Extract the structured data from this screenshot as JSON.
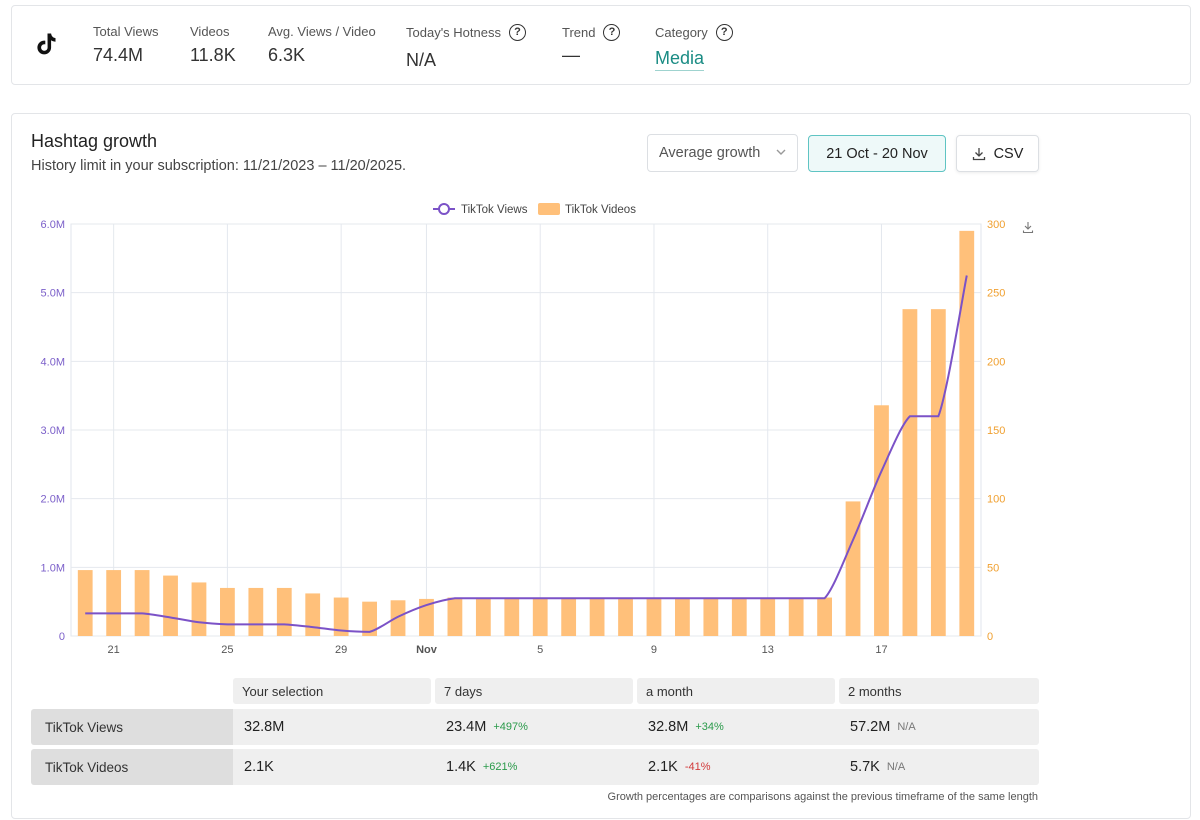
{
  "stats": {
    "total_views_label": "Total Views",
    "total_views_value": "74.4M",
    "videos_label": "Videos",
    "videos_value": "11.8K",
    "avg_label": "Avg. Views / Video",
    "avg_value": "6.3K",
    "hotness_label": "Today's Hotness",
    "hotness_value": "N/A",
    "trend_label": "Trend",
    "trend_value": "—",
    "category_label": "Category",
    "category_value": "Media",
    "help_glyph": "?"
  },
  "growth": {
    "title": "Hashtag growth",
    "subtitle": "History limit in your subscription: 11/21/2023 – 11/20/2025.",
    "mode_select": "Average growth",
    "date_range": "21 Oct - 20 Nov",
    "csv_label": "CSV"
  },
  "colors": {
    "views_line": "#7b52c7",
    "videos_bar": "#ffc07a",
    "right_axis": "#f0a030",
    "left_axis": "#7b5fc9",
    "accent": "#1a8c84"
  },
  "chart_data": {
    "type": "bar+line",
    "legend": [
      "TikTok Views",
      "TikTok Videos"
    ],
    "legend_position": "top-center",
    "x": [
      "Oct 20",
      "Oct 21",
      "Oct 22",
      "Oct 23",
      "Oct 24",
      "Oct 25",
      "Oct 26",
      "Oct 27",
      "Oct 28",
      "Oct 29",
      "Oct 30",
      "Oct 31",
      "Nov 1",
      "Nov 2",
      "Nov 3",
      "Nov 4",
      "Nov 5",
      "Nov 6",
      "Nov 7",
      "Nov 8",
      "Nov 9",
      "Nov 10",
      "Nov 11",
      "Nov 12",
      "Nov 13",
      "Nov 14",
      "Nov 15",
      "Nov 16",
      "Nov 17",
      "Nov 18",
      "Nov 19",
      "Nov 20"
    ],
    "x_ticks": [
      {
        "label": "21",
        "index": 1
      },
      {
        "label": "25",
        "index": 5
      },
      {
        "label": "29",
        "index": 9
      },
      {
        "label": "Nov",
        "index": 12
      },
      {
        "label": "5",
        "index": 16
      },
      {
        "label": "9",
        "index": 20
      },
      {
        "label": "13",
        "index": 24
      },
      {
        "label": "17",
        "index": 28
      }
    ],
    "series": [
      {
        "name": "TikTok Videos",
        "kind": "bar",
        "axis": "right",
        "values": [
          48,
          48,
          48,
          44,
          39,
          35,
          35,
          35,
          31,
          28,
          25,
          26,
          27,
          28,
          28,
          28,
          28,
          28,
          28,
          28,
          28,
          28,
          28,
          28,
          28,
          28,
          28,
          98,
          168,
          238,
          238,
          295
        ]
      },
      {
        "name": "TikTok Views",
        "kind": "line",
        "axis": "left",
        "values": [
          0.33,
          0.33,
          0.33,
          0.27,
          0.2,
          0.17,
          0.17,
          0.17,
          0.13,
          0.08,
          0.06,
          0.28,
          0.45,
          0.55,
          0.55,
          0.55,
          0.55,
          0.55,
          0.55,
          0.55,
          0.55,
          0.55,
          0.55,
          0.55,
          0.55,
          0.55,
          0.55,
          1.4,
          2.4,
          3.2,
          3.2,
          5.25
        ]
      }
    ],
    "y_left": {
      "min": 0,
      "max": 6.0,
      "ticks": [
        0,
        1,
        2,
        3,
        4,
        5,
        6
      ],
      "tick_labels": [
        "0",
        "1.0M",
        "2.0M",
        "3.0M",
        "4.0M",
        "5.0M",
        "6.0M"
      ]
    },
    "y_right": {
      "min": 0,
      "max": 300,
      "ticks": [
        0,
        50,
        100,
        150,
        200,
        250,
        300
      ],
      "tick_labels": [
        "0",
        "50",
        "100",
        "150",
        "200",
        "250",
        "300"
      ]
    },
    "grid": true
  },
  "table": {
    "headers": [
      "Your selection",
      "7 days",
      "a month",
      "2 months"
    ],
    "rows": [
      {
        "label": "TikTok Views",
        "cells": [
          {
            "value": "32.8M",
            "pct": "",
            "pct_kind": ""
          },
          {
            "value": "23.4M",
            "pct": "+497%",
            "pct_kind": "pos"
          },
          {
            "value": "32.8M",
            "pct": "+34%",
            "pct_kind": "pos"
          },
          {
            "value": "57.2M",
            "pct": "N/A",
            "pct_kind": "na"
          }
        ]
      },
      {
        "label": "TikTok Videos",
        "cells": [
          {
            "value": "2.1K",
            "pct": "",
            "pct_kind": ""
          },
          {
            "value": "1.4K",
            "pct": "+621%",
            "pct_kind": "pos"
          },
          {
            "value": "2.1K",
            "pct": "-41%",
            "pct_kind": "neg"
          },
          {
            "value": "5.7K",
            "pct": "N/A",
            "pct_kind": "na"
          }
        ]
      }
    ],
    "footnote": "Growth percentages are comparisons against the previous timeframe of the same length"
  }
}
